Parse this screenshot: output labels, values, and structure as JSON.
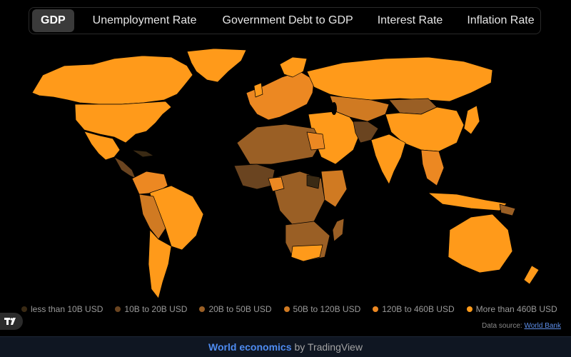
{
  "tabs": [
    {
      "label": "GDP",
      "active": true
    },
    {
      "label": "Unemployment Rate",
      "active": false
    },
    {
      "label": "Government Debt to GDP",
      "active": false
    },
    {
      "label": "Interest Rate",
      "active": false
    },
    {
      "label": "Inflation Rate",
      "active": false
    }
  ],
  "legend": [
    {
      "label": "less than 10B USD",
      "color": "#3a2a14"
    },
    {
      "label": "10B to 20B USD",
      "color": "#6a4420"
    },
    {
      "label": "20B to 50B USD",
      "color": "#9a5f25"
    },
    {
      "label": "50B to 120B USD",
      "color": "#d07a22"
    },
    {
      "label": "120B to 460B USD",
      "color": "#ec8822"
    },
    {
      "label": "More than 460B USD",
      "color": "#ff9a1a"
    }
  ],
  "source": {
    "prefix": "Data source:",
    "link": "World Bank"
  },
  "footer": {
    "brand": "World economics",
    "suffix": "by TradingView"
  }
}
